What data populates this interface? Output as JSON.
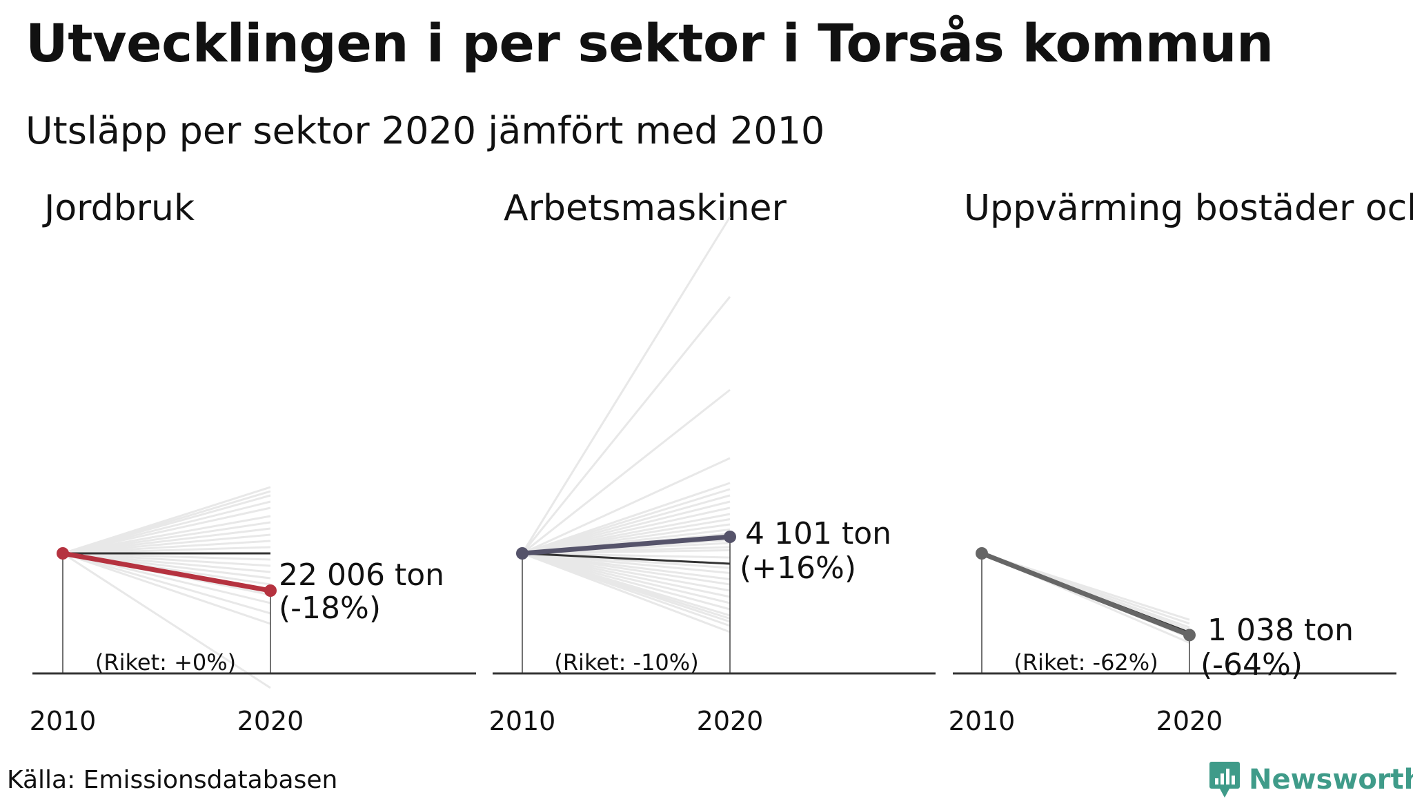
{
  "title": "Utvecklingen i per sektor i Torsås kommun",
  "subtitle": "Utsläpp per sektor 2020 jämfört med 2010",
  "source": "Källa: Emissionsdatabasen",
  "brand": {
    "name": "Newsworthy",
    "icon": "bar-chart-icon",
    "color": "#3f9b89"
  },
  "chart_data": [
    {
      "type": "line",
      "title": "Jordbruk",
      "x": [
        "2010",
        "2020"
      ],
      "main_series": {
        "name": "Torsås kommun",
        "change_pct": -18,
        "color": "#b5323f"
      },
      "value_label": "22 006 ton",
      "change_label": "(-18%)",
      "riket_label": "(Riket: +0%)",
      "riket_change_pct": 0,
      "other_municipalities_change_pct": [
        32,
        30,
        28,
        25,
        22,
        18,
        15,
        12,
        9,
        6,
        3,
        -3,
        -6,
        -9,
        -12,
        -15,
        -20,
        -24,
        -29,
        -34,
        -65
      ],
      "colors": {
        "riket": "#333333",
        "others": "#e8e8e8"
      }
    },
    {
      "type": "line",
      "title": "Arbetsmaskiner",
      "x": [
        "2010",
        "2020"
      ],
      "main_series": {
        "name": "Torsås kommun",
        "change_pct": 16,
        "color": "#55536a"
      },
      "value_label": "4 101 ton",
      "change_label": "(+16%)",
      "riket_label": "(Riket: -10%)",
      "riket_change_pct": -10,
      "other_municipalities_change_pct": [
        325,
        248,
        158,
        92,
        68,
        62,
        56,
        50,
        44,
        38,
        33,
        28,
        23,
        19,
        13,
        10,
        6,
        3,
        -4,
        -14,
        -19,
        -25,
        -30,
        -36,
        -42,
        -48,
        -54,
        -60,
        -63,
        -66,
        -70,
        -76
      ],
      "colors": {
        "riket": "#333333",
        "others": "#e8e8e8"
      }
    },
    {
      "type": "line",
      "title": "Uppvärming bostäder och",
      "x": [
        "2010",
        "2020"
      ],
      "main_series": {
        "name": "Torsås kommun",
        "change_pct": -64,
        "color": "#666666"
      },
      "value_label": "1 038 ton",
      "change_label": "(-64%)",
      "riket_label": "(Riket: -62%)",
      "riket_change_pct": -62,
      "other_municipalities_change_pct": [
        -52,
        -55,
        -58,
        -60,
        -63,
        -66,
        -70
      ],
      "colors": {
        "riket": "#333333",
        "others": "#e8e8e8"
      }
    }
  ]
}
